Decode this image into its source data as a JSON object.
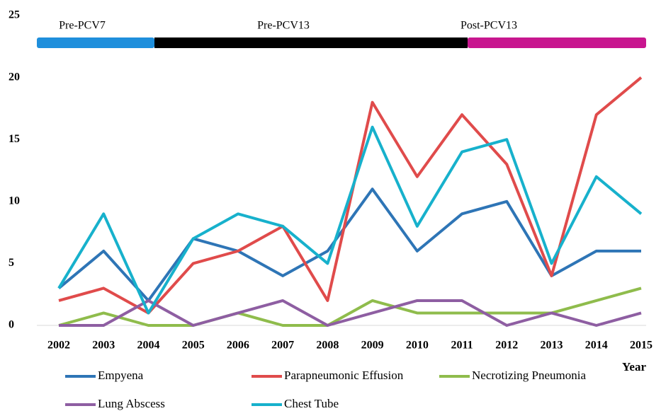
{
  "chart_data": {
    "type": "line",
    "x_label": "Year",
    "categories": [
      "2002",
      "2003",
      "2004",
      "2005",
      "2006",
      "2007",
      "2008",
      "2009",
      "2010",
      "2011",
      "2012",
      "2013",
      "2014",
      "2015"
    ],
    "ylim": [
      0,
      25
    ],
    "yticks": [
      0,
      5,
      10,
      15,
      20,
      25
    ],
    "grid": false,
    "periods": [
      {
        "label": "Pre-PCV7",
        "color": "#1f8fdc"
      },
      {
        "label": "Pre-PCV13",
        "color": "#000000"
      },
      {
        "label": "Post-PCV13",
        "color": "#c8168f"
      }
    ],
    "series": [
      {
        "name": "Empyena",
        "color": "#2e75b6",
        "values": [
          3,
          6,
          2,
          7,
          6,
          4,
          6,
          11,
          6,
          9,
          10,
          4,
          6,
          6
        ]
      },
      {
        "name": "Parapneumonic Effusion",
        "color": "#e04b4b",
        "values": [
          2,
          3,
          1,
          5,
          6,
          8,
          2,
          18,
          12,
          17,
          13,
          4,
          17,
          20
        ]
      },
      {
        "name": "Necrotizing Pneumonia",
        "color": "#8fbc4c",
        "values": [
          0,
          1,
          0,
          0,
          1,
          0,
          0,
          2,
          1,
          1,
          1,
          1,
          2,
          3
        ]
      },
      {
        "name": "Lung Abscess",
        "color": "#8e5ea2",
        "values": [
          0,
          0,
          2,
          0,
          1,
          2,
          0,
          1,
          2,
          2,
          0,
          1,
          0,
          1
        ]
      },
      {
        "name": "Chest Tube",
        "color": "#17b1cc",
        "values": [
          3,
          9,
          1,
          7,
          9,
          8,
          5,
          16,
          8,
          14,
          15,
          5,
          12,
          9
        ]
      }
    ]
  }
}
